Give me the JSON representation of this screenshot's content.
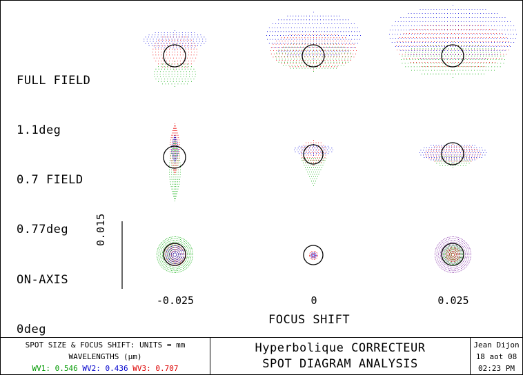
{
  "chart_data": {
    "type": "scatter",
    "title": "SPOT DIAGRAM ANALYSIS",
    "xlabel": "FOCUS SHIFT",
    "focus_shifts": [
      "-0.025",
      "0",
      "0.025"
    ],
    "fields": [
      {
        "name": "FULL FIELD",
        "angle": "1.1deg"
      },
      {
        "name": "0.7 FIELD",
        "angle": "0.77deg"
      },
      {
        "name": "ON-AXIS",
        "angle": "0deg"
      }
    ],
    "scale_bar": "0.015",
    "wavelength_colors": {
      "wv1": "#00aa00",
      "wv2": "#0000dd",
      "wv3": "#ee0000"
    }
  },
  "footer": {
    "units_line": "SPOT SIZE & FOCUS SHIFT: UNITS = mm",
    "wavelengths_label": "WAVELENGTHS (μm)",
    "wv1": "WV1: 0.546",
    "wv2": "WV2: 0.436",
    "wv3": "WV3: 0.707",
    "title_line1": "Hyperbolique CORRECTEUR",
    "title_line2": "SPOT DIAGRAM ANALYSIS",
    "author": "Jean Dijon",
    "date": "18 aot 08",
    "time": "02:23 PM"
  }
}
